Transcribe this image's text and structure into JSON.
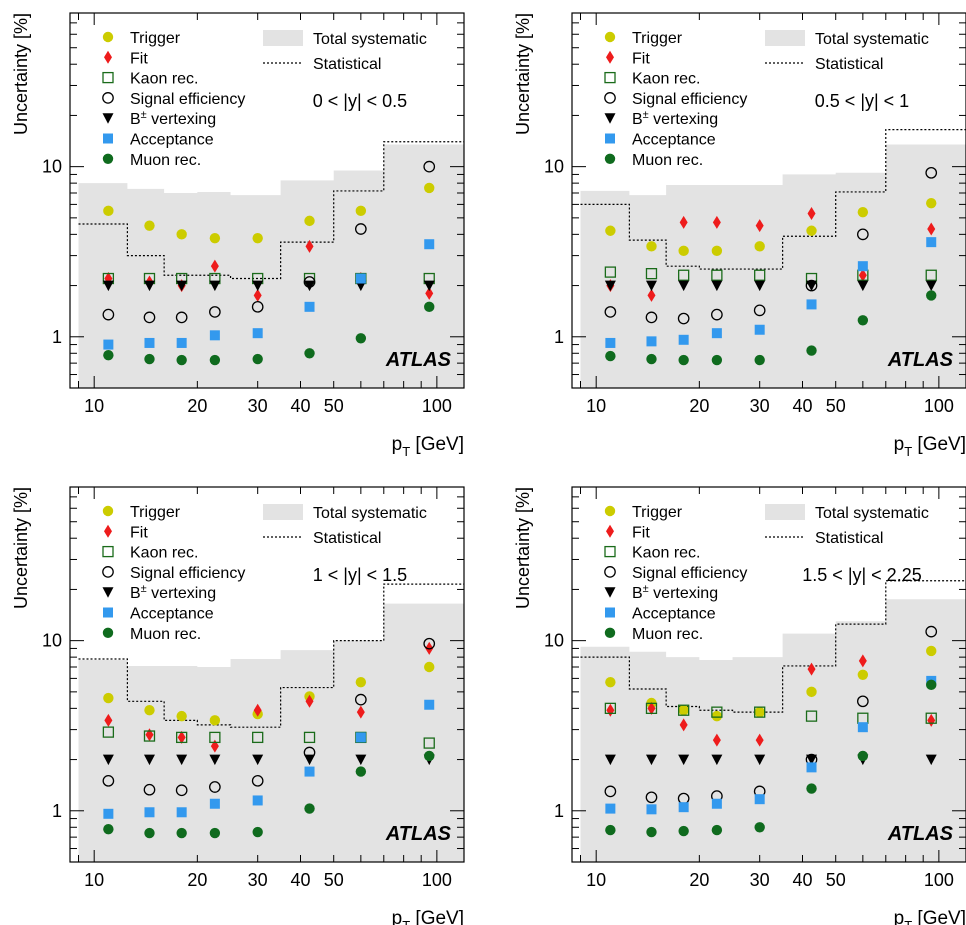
{
  "chart_data": [
    {
      "type": "scatter",
      "title": "",
      "region_label": "0 < |y| < 0.5",
      "xlabel": "p",
      "xlabel_sub": "T",
      "xlabel_unit": "[GeV]",
      "ylabel": "Uncertainty [%]",
      "xscale": "log",
      "yscale": "log",
      "xlim": [
        8.5,
        120
      ],
      "ylim": [
        0.5,
        80
      ],
      "xticklabels": [
        "10",
        "20",
        "30",
        "40",
        "50",
        "100"
      ],
      "yticklabels": [
        "1",
        "10"
      ],
      "watermark": "ATLAS",
      "legend": [
        "Trigger",
        "Fit",
        "Kaon rec.",
        "Signal efficiency",
        "B± vertexing",
        "Acceptance",
        "Muon rec.",
        "Total systematic",
        "Statistical"
      ],
      "bin_edges": [
        9,
        12.5,
        16,
        20,
        25,
        35,
        50,
        70,
        120
      ],
      "bins_x": [
        11,
        14.5,
        18,
        22.5,
        30,
        42.5,
        60,
        95
      ],
      "systematic": [
        8,
        7.4,
        7.0,
        7.1,
        6.8,
        8.3,
        9.5,
        13.5
      ],
      "statistical": [
        4.6,
        3.0,
        2.3,
        2.3,
        2.2,
        3.6,
        7.2,
        14.0
      ],
      "series": [
        {
          "name": "Trigger",
          "values": [
            5.5,
            4.5,
            4.0,
            3.8,
            3.8,
            4.8,
            5.5,
            7.5
          ]
        },
        {
          "name": "Fit",
          "values": [
            2.2,
            2.1,
            2.0,
            2.6,
            1.75,
            3.4,
            2.2,
            1.8
          ]
        },
        {
          "name": "Kaon rec.",
          "values": [
            2.2,
            2.2,
            2.2,
            2.2,
            2.2,
            2.2,
            2.2,
            2.2
          ]
        },
        {
          "name": "Signal efficiency",
          "values": [
            1.35,
            1.3,
            1.3,
            1.4,
            1.5,
            2.1,
            4.3,
            10.0
          ]
        },
        {
          "name": "B± vertexing",
          "values": [
            2.0,
            2.0,
            2.0,
            2.0,
            2.0,
            2.0,
            2.0,
            2.0
          ]
        },
        {
          "name": "Acceptance",
          "values": [
            0.9,
            0.92,
            0.92,
            1.02,
            1.05,
            1.5,
            2.2,
            3.5
          ]
        },
        {
          "name": "Muon rec.",
          "values": [
            0.78,
            0.74,
            0.73,
            0.73,
            0.74,
            0.8,
            0.98,
            1.5
          ]
        }
      ]
    },
    {
      "type": "scatter",
      "title": "",
      "region_label": "0.5 < |y| < 1",
      "xlabel": "p",
      "xlabel_sub": "T",
      "xlabel_unit": "[GeV]",
      "ylabel": "Uncertainty [%]",
      "xscale": "log",
      "yscale": "log",
      "xlim": [
        8.5,
        120
      ],
      "ylim": [
        0.5,
        80
      ],
      "xticklabels": [
        "10",
        "20",
        "30",
        "40",
        "50",
        "100"
      ],
      "yticklabels": [
        "1",
        "10"
      ],
      "watermark": "ATLAS",
      "legend": [
        "Trigger",
        "Fit",
        "Kaon rec.",
        "Signal efficiency",
        "B± vertexing",
        "Acceptance",
        "Muon rec.",
        "Total systematic",
        "Statistical"
      ],
      "bin_edges": [
        9,
        12.5,
        16,
        20,
        25,
        35,
        50,
        70,
        120
      ],
      "bins_x": [
        11,
        14.5,
        18,
        22.5,
        30,
        42.5,
        60,
        95
      ],
      "systematic": [
        7.2,
        6.8,
        7.8,
        7.8,
        7.8,
        9.0,
        9.2,
        13.5
      ],
      "statistical": [
        6.0,
        3.7,
        2.6,
        2.5,
        2.5,
        3.9,
        7.1,
        16.5
      ],
      "series": [
        {
          "name": "Trigger",
          "values": [
            4.2,
            3.4,
            3.2,
            3.2,
            3.4,
            4.2,
            5.4,
            6.1
          ]
        },
        {
          "name": "Fit",
          "values": [
            2.0,
            1.75,
            4.7,
            4.7,
            4.5,
            5.3,
            2.3,
            4.3
          ]
        },
        {
          "name": "Kaon rec.",
          "values": [
            2.4,
            2.35,
            2.3,
            2.3,
            2.3,
            2.2,
            2.3,
            2.3
          ]
        },
        {
          "name": "Signal efficiency",
          "values": [
            1.4,
            1.3,
            1.28,
            1.35,
            1.43,
            2.0,
            4.0,
            9.2
          ]
        },
        {
          "name": "B± vertexing",
          "values": [
            2.0,
            2.0,
            2.0,
            2.0,
            2.0,
            2.0,
            2.0,
            2.0
          ]
        },
        {
          "name": "Acceptance",
          "values": [
            0.92,
            0.94,
            0.96,
            1.05,
            1.1,
            1.55,
            2.6,
            3.6
          ]
        },
        {
          "name": "Muon rec.",
          "values": [
            0.77,
            0.74,
            0.73,
            0.73,
            0.73,
            0.83,
            1.25,
            1.75
          ]
        }
      ]
    },
    {
      "type": "scatter",
      "title": "",
      "region_label": "1 < |y| < 1.5",
      "xlabel": "p",
      "xlabel_sub": "T",
      "xlabel_unit": "[GeV]",
      "ylabel": "Uncertainty [%]",
      "xscale": "log",
      "yscale": "log",
      "xlim": [
        8.5,
        120
      ],
      "ylim": [
        0.5,
        80
      ],
      "xticklabels": [
        "10",
        "20",
        "30",
        "40",
        "50",
        "100"
      ],
      "yticklabels": [
        "1",
        "10"
      ],
      "watermark": "ATLAS",
      "legend": [
        "Trigger",
        "Fit",
        "Kaon rec.",
        "Signal efficiency",
        "B± vertexing",
        "Acceptance",
        "Muon rec.",
        "Total systematic",
        "Statistical"
      ],
      "bin_edges": [
        9,
        12.5,
        16,
        20,
        25,
        35,
        50,
        70,
        120
      ],
      "bins_x": [
        11,
        14.5,
        18,
        22.5,
        30,
        42.5,
        60,
        95
      ],
      "systematic": [
        7.7,
        7.1,
        7.1,
        7.0,
        7.8,
        8.8,
        10.0,
        16.5
      ],
      "statistical": [
        7.8,
        4.4,
        3.4,
        3.2,
        3.1,
        5.3,
        10.0,
        21.5
      ],
      "series": [
        {
          "name": "Trigger",
          "values": [
            4.6,
            3.9,
            3.6,
            3.4,
            3.7,
            4.7,
            5.7,
            7.0
          ]
        },
        {
          "name": "Fit",
          "values": [
            3.4,
            2.8,
            2.7,
            2.4,
            3.9,
            4.4,
            3.8,
            9.0
          ]
        },
        {
          "name": "Kaon rec.",
          "values": [
            2.9,
            2.75,
            2.7,
            2.7,
            2.7,
            2.7,
            2.7,
            2.5
          ]
        },
        {
          "name": "Signal efficiency",
          "values": [
            1.5,
            1.33,
            1.32,
            1.38,
            1.5,
            2.2,
            4.5,
            9.6
          ]
        },
        {
          "name": "B± vertexing",
          "values": [
            2.0,
            2.0,
            2.0,
            2.0,
            2.0,
            2.0,
            2.0,
            2.0
          ]
        },
        {
          "name": "Acceptance",
          "values": [
            0.96,
            0.98,
            0.98,
            1.1,
            1.15,
            1.7,
            2.7,
            4.2
          ]
        },
        {
          "name": "Muon rec.",
          "values": [
            0.78,
            0.74,
            0.74,
            0.74,
            0.75,
            1.03,
            1.7,
            2.1
          ]
        }
      ]
    },
    {
      "type": "scatter",
      "title": "",
      "region_label": "1.5 < |y| < 2.25",
      "xlabel": "p",
      "xlabel_sub": "T",
      "xlabel_unit": "[GeV]",
      "ylabel": "Uncertainty [%]",
      "xscale": "log",
      "yscale": "log",
      "xlim": [
        8.5,
        120
      ],
      "ylim": [
        0.5,
        80
      ],
      "xticklabels": [
        "10",
        "20",
        "30",
        "40",
        "50",
        "100"
      ],
      "yticklabels": [
        "1",
        "10"
      ],
      "watermark": "ATLAS",
      "legend": [
        "Trigger",
        "Fit",
        "Kaon rec.",
        "Signal efficiency",
        "B± vertexing",
        "Acceptance",
        "Muon rec.",
        "Total systematic",
        "Statistical"
      ],
      "bin_edges": [
        9,
        12.5,
        16,
        20,
        25,
        35,
        50,
        70,
        120
      ],
      "bins_x": [
        11,
        14.5,
        18,
        22.5,
        30,
        42.5,
        60,
        95
      ],
      "systematic": [
        9.2,
        8.6,
        8.0,
        7.7,
        8.0,
        11.0,
        13.0,
        17.5
      ],
      "statistical": [
        8.0,
        5.2,
        4.1,
        3.9,
        3.8,
        7.1,
        12.5,
        22.5
      ],
      "series": [
        {
          "name": "Trigger",
          "values": [
            5.7,
            4.3,
            3.9,
            3.6,
            3.8,
            5.0,
            6.3,
            8.7
          ]
        },
        {
          "name": "Fit",
          "values": [
            3.9,
            4.0,
            3.2,
            2.6,
            2.6,
            6.8,
            7.6,
            3.4
          ]
        },
        {
          "name": "Kaon rec.",
          "values": [
            4.0,
            4.0,
            3.9,
            3.8,
            3.8,
            3.6,
            3.5,
            3.5
          ]
        },
        {
          "name": "Signal efficiency",
          "values": [
            1.3,
            1.2,
            1.18,
            1.22,
            1.3,
            2.0,
            4.4,
            11.3
          ]
        },
        {
          "name": "B± vertexing",
          "values": [
            2.0,
            2.0,
            2.0,
            2.0,
            2.0,
            2.0,
            2.0,
            2.0
          ]
        },
        {
          "name": "Acceptance",
          "values": [
            1.03,
            1.02,
            1.05,
            1.1,
            1.17,
            1.8,
            3.1,
            5.8
          ]
        },
        {
          "name": "Muon rec.",
          "values": [
            0.77,
            0.75,
            0.76,
            0.77,
            0.8,
            1.35,
            2.1,
            5.5
          ]
        }
      ]
    }
  ],
  "colors": {
    "trigger": "#cccc00",
    "fit": "#ee1c1c",
    "kaon": "#1a6b1a",
    "signal_eff": "#000000",
    "vertexing": "#000000",
    "acceptance": "#3399ee",
    "muon": "#0f6b1e",
    "systematic_band": "#e3e3e3",
    "statistical_line": "#000000"
  }
}
